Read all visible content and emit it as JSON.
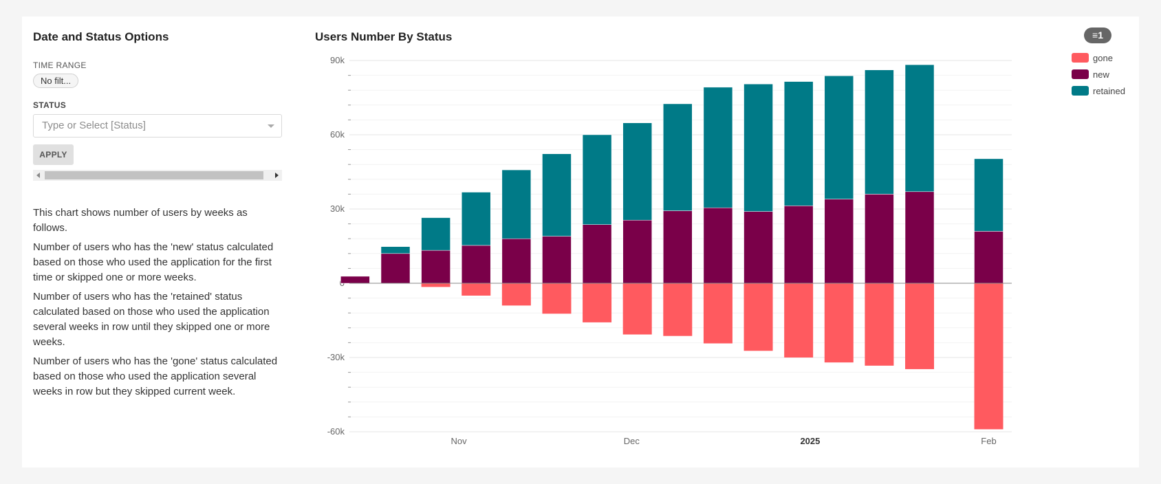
{
  "panel": {
    "title": "Date and Status Options",
    "time_range_label": "TIME RANGE",
    "time_range_value": "No filt...",
    "status_label": "STATUS",
    "status_placeholder": "Type or Select [Status]",
    "apply_label": "APPLY",
    "description": [
      "This chart shows number of users by weeks as follows.",
      "Number of users who has the 'new' status calculated based on those who used the application for the first time or skipped one or more weeks.",
      "Number of users who has the 'retained' status calculated based on those who used the application several weeks in row until they skipped one or more weeks.",
      "Number of users who has the 'gone' status calculated based on those who used the application several weeks in row but they skipped current week."
    ]
  },
  "filter_badge": "1",
  "colors": {
    "gone": "#ff5a5f",
    "new": "#7a0049",
    "retained": "#007a87"
  },
  "chart_data": {
    "type": "bar",
    "stacked": true,
    "title": "Users Number By Status",
    "xlabel": "",
    "ylabel": "",
    "ylim": [
      -60000,
      90000
    ],
    "y_ticks": [
      {
        "value": 90000,
        "label": "90k"
      },
      {
        "value": 60000,
        "label": "60k"
      },
      {
        "value": 30000,
        "label": "30k"
      },
      {
        "value": 0,
        "label": "0"
      },
      {
        "value": -30000,
        "label": "-30k"
      },
      {
        "value": -60000,
        "label": "-60k"
      }
    ],
    "x_ticks": [
      {
        "at": "2024-11-01",
        "label": "Nov",
        "bold": false
      },
      {
        "at": "2024-12-01",
        "label": "Dec",
        "bold": false
      },
      {
        "at": "2025-01-01",
        "label": "2025",
        "bold": true
      },
      {
        "at": "2025-02-01",
        "label": "Feb",
        "bold": false
      }
    ],
    "x_range": [
      "2024-10-13",
      "2025-02-05"
    ],
    "categories": [
      "2024-10-14",
      "2024-10-21",
      "2024-10-28",
      "2024-11-04",
      "2024-11-11",
      "2024-11-18",
      "2024-11-25",
      "2024-12-02",
      "2024-12-09",
      "2024-12-16",
      "2024-12-23",
      "2024-12-30",
      "2025-01-06",
      "2025-01-13",
      "2025-01-20",
      "2025-02-01"
    ],
    "series": [
      {
        "name": "gone",
        "values": [
          0,
          0,
          -1500,
          -5000,
          -9000,
          -12300,
          -15800,
          -20700,
          -21300,
          -24300,
          -27300,
          -30000,
          -32000,
          -33300,
          -34700,
          -59000
        ]
      },
      {
        "name": "new",
        "values": [
          2800,
          12000,
          13300,
          15300,
          18000,
          19000,
          23700,
          25500,
          29300,
          30500,
          29000,
          31300,
          34000,
          36000,
          37000,
          21000
        ]
      },
      {
        "name": "retained",
        "values": [
          0,
          2800,
          13200,
          21500,
          27800,
          33300,
          36300,
          39300,
          43200,
          48700,
          51500,
          50200,
          49800,
          50200,
          51300,
          29300
        ]
      }
    ],
    "legend_position": "top-right",
    "grid": true
  }
}
